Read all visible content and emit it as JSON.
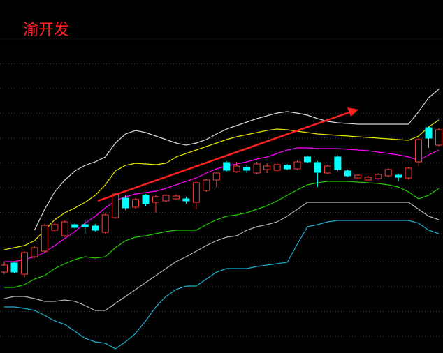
{
  "chart_data": {
    "type": "candlestick",
    "title": "渝开发",
    "ylim": [
      0,
      506
    ],
    "up_color": "#ff3c3c",
    "down_color": "#00ffff",
    "categories": [
      null,
      null,
      null,
      null,
      null,
      null,
      null,
      null,
      null,
      null,
      null,
      null,
      null,
      null,
      null,
      null,
      null,
      null,
      null,
      null,
      null,
      null,
      null,
      null,
      null,
      null,
      null,
      null,
      null,
      null,
      null,
      null,
      null,
      null,
      null,
      null,
      null,
      null,
      null,
      null,
      null,
      null,
      null,
      null
    ],
    "open": [
      116,
      129,
      113,
      138,
      146,
      176,
      168,
      184,
      184,
      182,
      173,
      194,
      222,
      209,
      226,
      216,
      218,
      221,
      221,
      216,
      233,
      248,
      273,
      260,
      266,
      258,
      263,
      262,
      269,
      264,
      281,
      273,
      258,
      281,
      261,
      251,
      248,
      250,
      254,
      255,
      251,
      274,
      323,
      298
    ],
    "high": [
      131,
      131,
      146,
      153,
      185,
      187,
      190,
      186,
      191,
      185,
      200,
      230,
      226,
      222,
      228,
      227,
      228,
      227,
      224,
      246,
      250,
      260,
      275,
      274,
      270,
      274,
      272,
      272,
      271,
      276,
      283,
      275,
      270,
      283,
      263,
      256,
      254,
      258,
      265,
      257,
      266,
      308,
      325,
      322
    ],
    "low": [
      113,
      114,
      108,
      136,
      144,
      174,
      166,
      178,
      171,
      174,
      171,
      192,
      205,
      207,
      210,
      201,
      216,
      219,
      214,
      206,
      231,
      238,
      260,
      258,
      258,
      256,
      258,
      260,
      262,
      262,
      272,
      238,
      256,
      261,
      252,
      249,
      246,
      248,
      252,
      246,
      249,
      268,
      294,
      296
    ],
    "close": [
      126,
      116,
      144,
      151,
      183,
      184,
      188,
      180,
      181,
      176,
      198,
      228,
      208,
      220,
      214,
      224,
      226,
      225,
      218,
      244,
      248,
      258,
      262,
      268,
      262,
      271,
      268,
      270,
      264,
      274,
      274,
      259,
      268,
      263,
      254,
      255,
      252,
      256,
      263,
      252,
      265,
      306,
      308,
      320
    ],
    "lines": [
      {
        "color": "#d8d8d8",
        "values": [
          null,
          null,
          null,
          176,
          206,
          231,
          248,
          261,
          269,
          274,
          281,
          301,
          314,
          319,
          316,
          311,
          306,
          301,
          298,
          301,
          306,
          314,
          321,
          326,
          331,
          336,
          340,
          344,
          346,
          344,
          341,
          336,
          332,
          330,
          329,
          328,
          328,
          328,
          328,
          328,
          328,
          346,
          366,
          378
        ]
      },
      {
        "color": "#e6e600",
        "values": [
          148,
          151,
          154,
          161,
          176,
          191,
          201,
          208,
          216,
          226,
          241,
          261,
          269,
          272,
          271,
          270,
          272,
          281,
          286,
          291,
          296,
          301,
          306,
          310,
          313,
          316,
          319,
          321,
          320,
          318,
          316,
          314,
          313,
          312,
          311,
          310,
          309,
          308,
          307,
          306,
          305,
          311,
          324,
          334
        ]
      },
      {
        "color": "#ff00ff",
        "values": [
          131,
          131,
          134,
          138,
          144,
          154,
          164,
          174,
          186,
          196,
          208,
          218,
          224,
          228,
          230,
          232,
          236,
          241,
          246,
          251,
          258,
          264,
          268,
          271,
          274,
          278,
          281,
          286,
          291,
          294,
          294,
          293,
          293,
          293,
          292,
          291,
          290,
          288,
          286,
          284,
          281,
          276,
          284,
          291
        ]
      },
      {
        "color": "#22cc00",
        "values": [
          94,
          94,
          98,
          106,
          111,
          121,
          128,
          134,
          138,
          136,
          138,
          151,
          161,
          166,
          168,
          171,
          174,
          176,
          176,
          176,
          184,
          191,
          196,
          198,
          201,
          206,
          211,
          218,
          226,
          234,
          241,
          244,
          246,
          246,
          246,
          245,
          244,
          243,
          241,
          238,
          231,
          221,
          226,
          236
        ]
      },
      {
        "color": "#b4b4b4",
        "values": [
          78,
          81,
          81,
          78,
          74,
          74,
          76,
          74,
          68,
          61,
          61,
          71,
          81,
          91,
          101,
          111,
          121,
          131,
          138,
          146,
          154,
          161,
          166,
          168,
          176,
          181,
          184,
          188,
          196,
          206,
          216,
          216,
          216,
          216,
          216,
          216,
          216,
          216,
          216,
          216,
          216,
          206,
          196,
          191
        ]
      },
      {
        "color": "#1ab0d0",
        "values": [
          66,
          66,
          64,
          61,
          54,
          46,
          41,
          31,
          21,
          16,
          14,
          6,
          16,
          28,
          46,
          66,
          81,
          91,
          96,
          96,
          106,
          116,
          121,
          121,
          121,
          124,
          126,
          128,
          130,
          156,
          181,
          184,
          188,
          190,
          190,
          190,
          190,
          190,
          190,
          190,
          190,
          186,
          176,
          171
        ]
      }
    ]
  }
}
